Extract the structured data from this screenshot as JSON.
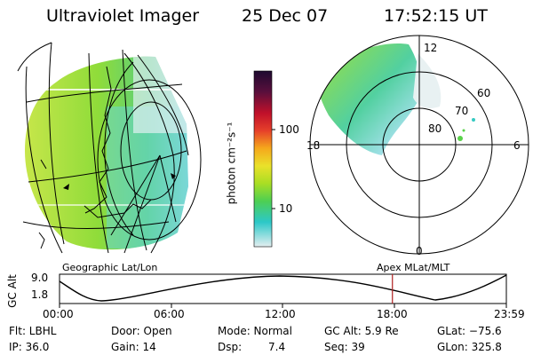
{
  "header": {
    "instrument": "Ultraviolet Imager",
    "date": "25 Dec 07",
    "time": "17:52:15 UT"
  },
  "colorbar": {
    "unit_label": "photon cm⁻²s⁻¹",
    "ticks": [
      "100",
      "10"
    ],
    "stops": [
      "#2d0a3c",
      "#7a1040",
      "#c8102e",
      "#e33a2a",
      "#f5a11a",
      "#f5e22a",
      "#b8e21e",
      "#5ad24a",
      "#2cc8c8",
      "#d8eef0"
    ]
  },
  "geo_panel": {
    "caption": "Geographic Lat/Lon"
  },
  "polar_panel": {
    "caption": "Apex MLat/MLT",
    "lat_labels": [
      "80",
      "70",
      "60"
    ],
    "mlt_labels": {
      "top": "12",
      "bottom": "0",
      "left": "18",
      "right": "6"
    }
  },
  "timeline": {
    "axis_label": "GC Alt",
    "y_ticks": [
      "9.0",
      "1.8"
    ],
    "x_ticks": [
      "00:00",
      "06:00",
      "12:00",
      "18:00",
      "23:59"
    ],
    "current_time_fraction": 0.745,
    "marker_color": "#b02020"
  },
  "info": {
    "flt": "Flt: LBHL",
    "ip": "IP: 36.0",
    "door": "Door: Open",
    "gain": "Gain: 14",
    "mode": "Mode: Normal",
    "dsp_label": "Dsp:",
    "dsp_value": "7.4",
    "gc_alt": "GC Alt: 5.9 Re",
    "seq": "Seq: 39",
    "glat": "GLat: −75.6",
    "glon": "GLon: 325.8"
  }
}
